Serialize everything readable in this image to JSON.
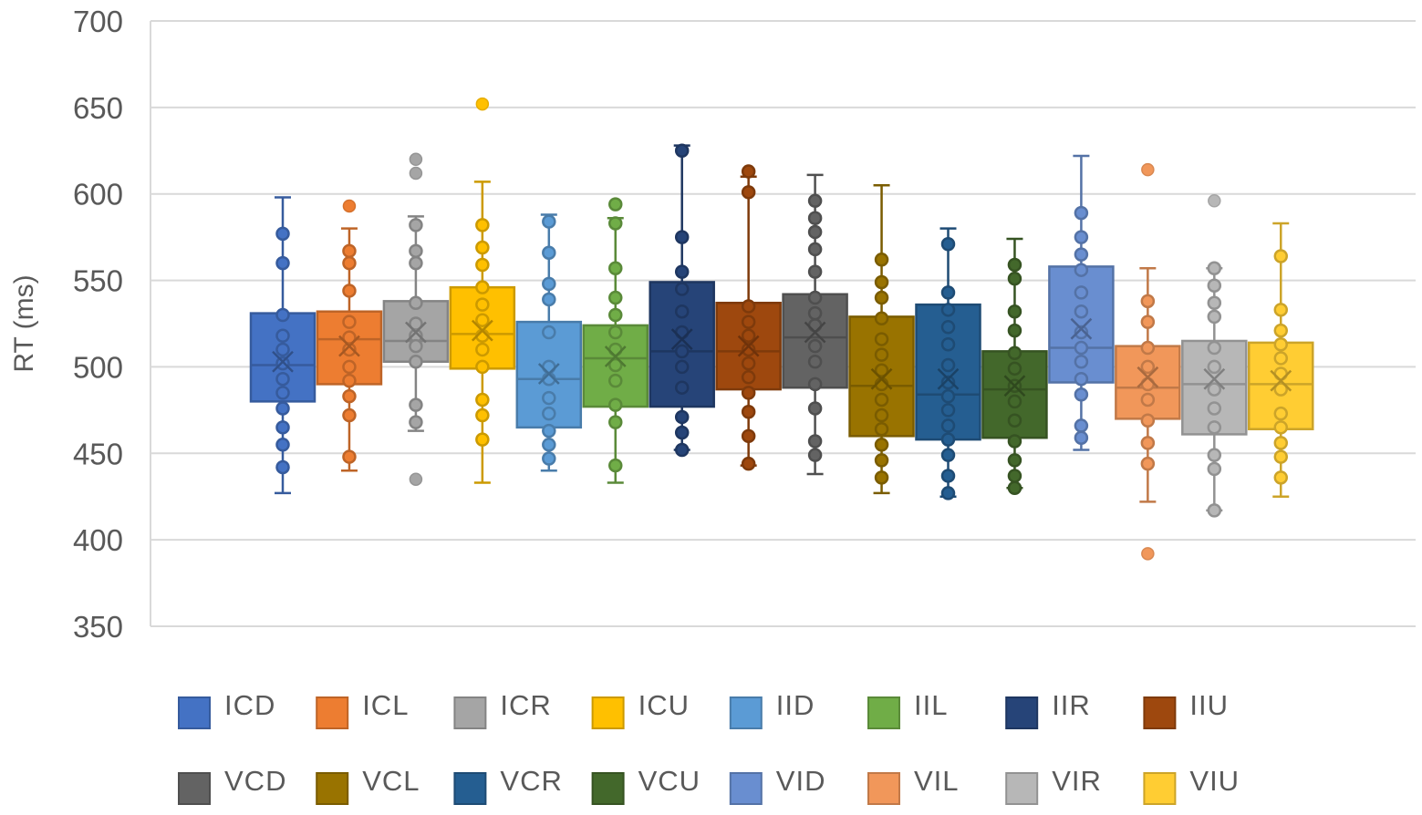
{
  "chart_data": {
    "type": "box",
    "title": "",
    "xlabel": "",
    "ylabel": "RT (ms)",
    "ylim": [
      350,
      700
    ],
    "yticks": [
      350,
      400,
      450,
      500,
      550,
      600,
      650,
      700
    ],
    "grid": true,
    "legend_position": "bottom",
    "series": [
      {
        "name": "ICD",
        "color": "#4472C4",
        "min": 427,
        "q1": 480,
        "median": 501,
        "q3": 531,
        "max": 598,
        "mean": 503,
        "points": [
          577,
          560,
          530,
          518,
          510,
          502,
          493,
          485,
          476,
          465,
          455,
          442
        ],
        "outliers": []
      },
      {
        "name": "ICL",
        "color": "#ED7D31",
        "min": 440,
        "q1": 490,
        "median": 516,
        "q3": 532,
        "max": 580,
        "mean": 512,
        "points": [
          567,
          560,
          544,
          526,
          517,
          510,
          500,
          492,
          483,
          472,
          448
        ],
        "outliers": [
          593
        ]
      },
      {
        "name": "ICR",
        "color": "#A5A5A5",
        "min": 463,
        "q1": 503,
        "median": 515,
        "q3": 538,
        "max": 587,
        "mean": 520,
        "points": [
          582,
          567,
          560,
          537,
          525,
          518,
          512,
          503,
          478,
          468
        ],
        "outliers": [
          620,
          612,
          435
        ]
      },
      {
        "name": "ICU",
        "color": "#FFC000",
        "min": 433,
        "q1": 499,
        "median": 519,
        "q3": 546,
        "max": 607,
        "mean": 521,
        "points": [
          582,
          569,
          559,
          546,
          536,
          527,
          518,
          510,
          500,
          481,
          472,
          458
        ],
        "outliers": [
          652
        ]
      },
      {
        "name": "IID",
        "color": "#5B9BD5",
        "min": 440,
        "q1": 465,
        "median": 493,
        "q3": 526,
        "max": 588,
        "mean": 496,
        "points": [
          584,
          566,
          548,
          539,
          520,
          500,
          493,
          482,
          473,
          463,
          455,
          447
        ],
        "outliers": []
      },
      {
        "name": "IIL",
        "color": "#70AD47",
        "min": 433,
        "q1": 477,
        "median": 505,
        "q3": 524,
        "max": 586,
        "mean": 506,
        "points": [
          594,
          583,
          557,
          540,
          530,
          520,
          510,
          501,
          492,
          478,
          468,
          443
        ],
        "outliers": []
      },
      {
        "name": "IIR",
        "color": "#264478",
        "min": 452,
        "q1": 477,
        "median": 509,
        "q3": 549,
        "max": 628,
        "mean": 516,
        "points": [
          625,
          575,
          555,
          545,
          532,
          520,
          509,
          500,
          488,
          471,
          462,
          452
        ],
        "outliers": []
      },
      {
        "name": "IIU",
        "color": "#9E480E",
        "min": 443,
        "q1": 487,
        "median": 509,
        "q3": 537,
        "max": 610,
        "mean": 512,
        "points": [
          613,
          601,
          535,
          526,
          518,
          510,
          502,
          494,
          485,
          474,
          460,
          444
        ],
        "outliers": []
      },
      {
        "name": "VCD",
        "color": "#636363",
        "min": 438,
        "q1": 488,
        "median": 517,
        "q3": 542,
        "max": 611,
        "mean": 520,
        "points": [
          596,
          586,
          578,
          568,
          555,
          540,
          531,
          524,
          512,
          503,
          490,
          476,
          457,
          449
        ],
        "outliers": []
      },
      {
        "name": "VCL",
        "color": "#997300",
        "min": 427,
        "q1": 460,
        "median": 489,
        "q3": 529,
        "max": 605,
        "mean": 493,
        "points": [
          562,
          549,
          540,
          528,
          516,
          507,
          498,
          490,
          481,
          472,
          464,
          455,
          446,
          436
        ],
        "outliers": []
      },
      {
        "name": "VCR",
        "color": "#255E91",
        "min": 425,
        "q1": 458,
        "median": 484,
        "q3": 536,
        "max": 580,
        "mean": 493,
        "points": [
          571,
          543,
          533,
          523,
          513,
          501,
          491,
          483,
          475,
          466,
          458,
          449,
          437,
          427
        ],
        "outliers": []
      },
      {
        "name": "VCU",
        "color": "#43682B",
        "min": 430,
        "q1": 459,
        "median": 487,
        "q3": 509,
        "max": 574,
        "mean": 489,
        "points": [
          559,
          551,
          532,
          521,
          508,
          499,
          489,
          480,
          469,
          457,
          446,
          437,
          430
        ],
        "outliers": []
      },
      {
        "name": "VID",
        "color": "#698ED0",
        "min": 452,
        "q1": 491,
        "median": 511,
        "q3": 558,
        "max": 622,
        "mean": 522,
        "points": [
          589,
          575,
          565,
          556,
          543,
          532,
          520,
          511,
          503,
          493,
          484,
          466,
          459
        ],
        "outliers": []
      },
      {
        "name": "VIL",
        "color": "#F1975A",
        "min": 422,
        "q1": 470,
        "median": 488,
        "q3": 512,
        "max": 557,
        "mean": 494,
        "points": [
          538,
          526,
          511,
          500,
          490,
          481,
          469,
          456,
          444
        ],
        "outliers": [
          614,
          392
        ]
      },
      {
        "name": "VIR",
        "color": "#B7B7B7",
        "min": 417,
        "q1": 461,
        "median": 490,
        "q3": 515,
        "max": 557,
        "mean": 493,
        "points": [
          557,
          547,
          537,
          529,
          511,
          500,
          487,
          476,
          465,
          449,
          441,
          417
        ],
        "outliers": [
          596
        ]
      },
      {
        "name": "VIU",
        "color": "#FFCD33",
        "min": 425,
        "q1": 464,
        "median": 490,
        "q3": 514,
        "max": 583,
        "mean": 492,
        "points": [
          564,
          533,
          521,
          513,
          505,
          496,
          487,
          473,
          465,
          456,
          448,
          436
        ],
        "outliers": []
      }
    ]
  }
}
